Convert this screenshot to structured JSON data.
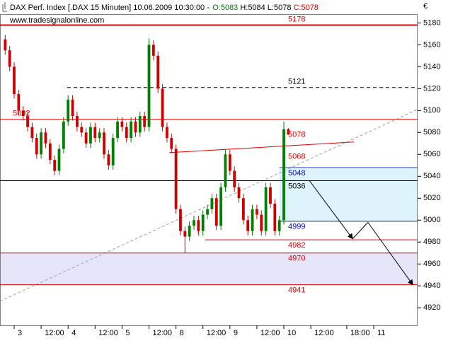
{
  "chart_data": {
    "type": "candlestick",
    "title": "DAX Perf. Index [.DAX  15 Minuten] 10.06.2009 10:30:00 -",
    "ohlc_header": [
      {
        "text": "O:5083",
        "color": "#008000"
      },
      {
        "text": "H:5084",
        "color": "#000000"
      },
      {
        "text": "L:5078",
        "color": "#000000"
      },
      {
        "text": "C:5078",
        "color": "#d00000"
      }
    ],
    "watermark": "www.tradesignalonline.com",
    "currency": "€",
    "up_color": "#008000",
    "down_color": "#d00000",
    "x": [
      -2,
      -1,
      0,
      1,
      2,
      3,
      4,
      5,
      6,
      7,
      8,
      9,
      10,
      11,
      12,
      13,
      14,
      15,
      16,
      17,
      18,
      19,
      20,
      21,
      22,
      23,
      24,
      25,
      26,
      27,
      28,
      29,
      30,
      31,
      32,
      33,
      34,
      35,
      36,
      37,
      38,
      39,
      40,
      41,
      42,
      43,
      44,
      45,
      46,
      47,
      48,
      49,
      50,
      51,
      52,
      53,
      54,
      55,
      56,
      57,
      58,
      59,
      60,
      61
    ],
    "open": [
      5165,
      5155,
      5140,
      5115,
      5100,
      5095,
      5085,
      5075,
      5060,
      5080,
      5070,
      5055,
      5045,
      5065,
      5090,
      5110,
      5095,
      5085,
      5080,
      5070,
      5085,
      5075,
      5080,
      5060,
      5050,
      5075,
      5090,
      5085,
      5075,
      5090,
      5080,
      5095,
      5085,
      5160,
      5150,
      5120,
      5085,
      5075,
      5065,
      5010,
      4990,
      4985,
      4995,
      5000,
      4990,
      5005,
      5010,
      5020,
      4995,
      5030,
      5060,
      5045,
      5030,
      5020,
      5000,
      4990,
      5010,
      5005,
      4990,
      5030,
      5015,
      4990,
      5000,
      5083
    ],
    "high": [
      5169,
      5159,
      5144,
      5119,
      5104,
      5099,
      5089,
      5079,
      5084,
      5084,
      5074,
      5059,
      5069,
      5094,
      5114,
      5114,
      5099,
      5089,
      5084,
      5089,
      5089,
      5084,
      5084,
      5064,
      5079,
      5094,
      5094,
      5089,
      5094,
      5094,
      5099,
      5099,
      5166,
      5164,
      5154,
      5124,
      5089,
      5079,
      5069,
      5014,
      4994,
      4999,
      5004,
      5004,
      5009,
      5014,
      5024,
      5024,
      5034,
      5064,
      5064,
      5049,
      5034,
      5024,
      5004,
      5014,
      5014,
      5009,
      5034,
      5034,
      5019,
      5004,
      5090,
      5084
    ],
    "low": [
      5151,
      5136,
      5111,
      5096,
      5091,
      5081,
      5071,
      5056,
      5056,
      5066,
      5051,
      5041,
      5041,
      5061,
      5086,
      5091,
      5081,
      5076,
      5066,
      5066,
      5071,
      5071,
      5056,
      5046,
      5046,
      5071,
      5081,
      5071,
      5071,
      5076,
      5076,
      5081,
      5081,
      5146,
      5116,
      5081,
      5071,
      5061,
      5006,
      4986,
      4970,
      4981,
      4991,
      4986,
      4986,
      5001,
      5006,
      4991,
      4991,
      5026,
      5041,
      5026,
      5016,
      4996,
      4986,
      4986,
      5001,
      4986,
      4986,
      5011,
      4986,
      4986,
      4996,
      5078
    ],
    "close": [
      5155,
      5140,
      5115,
      5100,
      5095,
      5085,
      5075,
      5060,
      5080,
      5070,
      5055,
      5045,
      5065,
      5090,
      5110,
      5095,
      5085,
      5080,
      5070,
      5085,
      5075,
      5080,
      5060,
      5050,
      5075,
      5090,
      5085,
      5075,
      5090,
      5080,
      5095,
      5085,
      5160,
      5150,
      5120,
      5085,
      5075,
      5065,
      5010,
      4990,
      4985,
      4995,
      5000,
      4990,
      5005,
      5010,
      5020,
      4995,
      5030,
      5060,
      5045,
      5030,
      5020,
      5000,
      4990,
      5010,
      5005,
      4990,
      5030,
      5015,
      4990,
      5000,
      5083,
      5078
    ],
    "xlim": [
      -3.15,
      89.76
    ],
    "ylim": [
      4904,
      5188
    ],
    "yticks": [
      4920,
      4940,
      4960,
      4980,
      5000,
      5020,
      5040,
      5060,
      5080,
      5100,
      5120,
      5140,
      5160,
      5180
    ],
    "xticks": [
      {
        "value": 0,
        "label": "3"
      },
      {
        "value": 6,
        "label": "12:00"
      },
      {
        "value": 12,
        "label": "4"
      },
      {
        "value": 18,
        "label": "12:00"
      },
      {
        "value": 24,
        "label": "5"
      },
      {
        "value": 30,
        "label": "12:00"
      },
      {
        "value": 36,
        "label": "8"
      },
      {
        "value": 42,
        "label": "12:00"
      },
      {
        "value": 48,
        "label": "9"
      },
      {
        "value": 54,
        "label": "12:00"
      },
      {
        "value": 60,
        "label": "10"
      },
      {
        "value": 66,
        "label": "12:00"
      },
      {
        "value": 74,
        "label": "18:00"
      },
      {
        "value": 80,
        "label": "11"
      }
    ],
    "zones": [
      {
        "from": 4941,
        "to": 4970,
        "color": "#e6e6fa"
      },
      {
        "from": 4999,
        "to": 5048,
        "x0": 59,
        "color": "#dff3fd"
      }
    ],
    "levels": [
      {
        "value": 5178,
        "color": "#e00000",
        "text_color": "#e00000",
        "label_side": "right",
        "label_pos": "above",
        "width": 2
      },
      {
        "value": 5121,
        "color": "#000000",
        "text_color": "#000000",
        "label_side": "right",
        "label_pos": "above",
        "dashed": true,
        "x0": 11.8
      },
      {
        "value": 5092,
        "color": "#e00000",
        "text_color": "#e00000",
        "label_side": "left",
        "label_pos": "above"
      },
      {
        "value": 5078,
        "text_color": "#e00000",
        "label_side": "right",
        "label_pos": "on"
      },
      {
        "value": 5048,
        "color": "#3050c0",
        "text_color": "#0000c0",
        "label_side": "right",
        "label_pos": "below",
        "x0": 59
      },
      {
        "value": 5036,
        "color": "#000000",
        "text_color": "#000000",
        "label_side": "right",
        "label_pos": "below"
      },
      {
        "value": 4999,
        "color": "#203040",
        "text_color": "#0000c0",
        "label_side": "right",
        "label_pos": "below",
        "x0": 59
      },
      {
        "value": 4982,
        "color": "#e00000",
        "text_color": "#e00000",
        "label_side": "right",
        "label_pos": "below",
        "x0": 42.5
      },
      {
        "value": 4970,
        "color": "#e00000",
        "text_color": "#e00000",
        "label_side": "right",
        "label_pos": "below"
      },
      {
        "value": 4941,
        "color": "#e00000",
        "text_color": "#e00000",
        "label_side": "right",
        "label_pos": "below"
      }
    ],
    "trendlines": [
      {
        "label": 5068,
        "color": "#e00000",
        "x": [
          34.5,
          75.6
        ],
        "y": [
          5061.6,
          5071.3
        ]
      },
      {
        "color": "#a0a0a0",
        "dashed": true,
        "x": [
          -3.15,
          89.76
        ],
        "y": [
          4926,
          5101
        ]
      }
    ],
    "arrow_path": {
      "color": "#000000",
      "x": [
        65.7,
        75.3,
        78.7,
        88.7
      ],
      "y": [
        5036,
        4983,
        4998,
        4941
      ]
    }
  }
}
